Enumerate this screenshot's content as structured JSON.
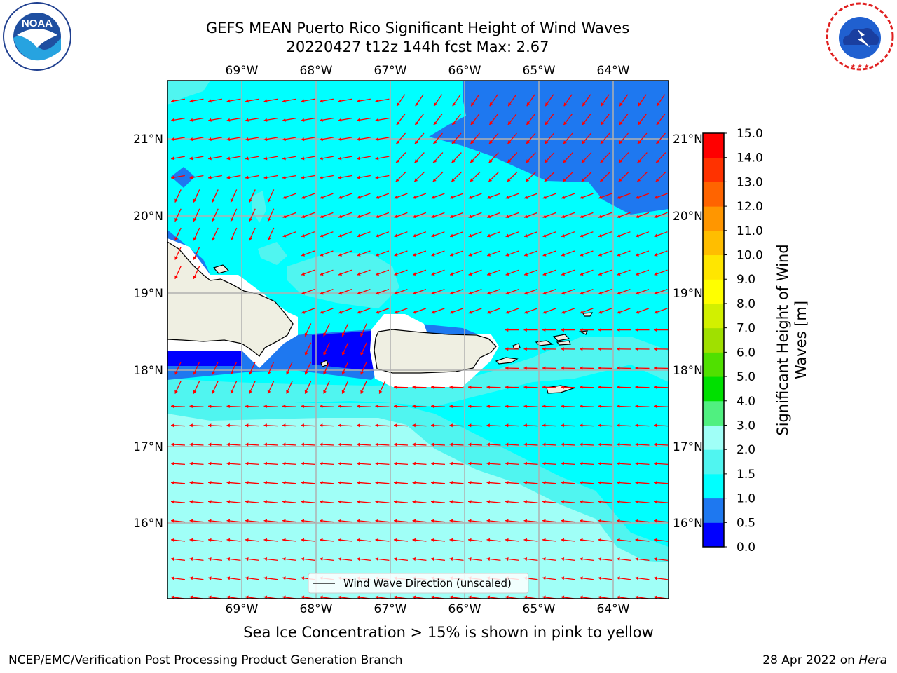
{
  "header": {
    "title_line1": "GEFS MEAN Puerto Rico Significant Height of Wind Waves",
    "title_line2": "20220427 t12z 144h fcst   Max: 2.67"
  },
  "logos": {
    "left": {
      "name": "noaa-logo",
      "text": "NOAA",
      "ring_text": "NATIONAL OCEANIC AND ATMOSPHERIC ADMINISTRATION · U.S. DEPARTMENT OF COMMERCE"
    },
    "right": {
      "name": "nws-logo",
      "ring_text": "NATIONAL WEATHER SERVICE"
    }
  },
  "map": {
    "lon_labels": [
      "69°W",
      "68°W",
      "67°W",
      "66°W",
      "65°W",
      "64°W"
    ],
    "lat_labels": [
      "21°N",
      "20°N",
      "19°N",
      "18°N",
      "17°N",
      "16°N"
    ],
    "legend_label": "Wind Wave Direction (unscaled)",
    "arrow_color": "#ff0000"
  },
  "colorbar": {
    "label_line1": "Significant Height of Wind",
    "label_line2": "Waves [m]",
    "ticks": [
      "0.0",
      "0.5",
      "1.0",
      "1.5",
      "2.0",
      "3.0",
      "4.0",
      "5.0",
      "6.0",
      "7.0",
      "8.0",
      "9.0",
      "10.0",
      "11.0",
      "12.0",
      "13.0",
      "14.0",
      "15.0"
    ],
    "colors": [
      "#0000ff",
      "#1e78f0",
      "#00ffff",
      "#50f5f0",
      "#a0fff7",
      "#50f080",
      "#00e000",
      "#50e000",
      "#a0e000",
      "#d2f000",
      "#ffff00",
      "#ffe600",
      "#ffbe00",
      "#ff9600",
      "#ff6400",
      "#ff3200",
      "#ff0000"
    ]
  },
  "note": "Sea Ice Concentration > 15% is shown in pink to yellow",
  "footer": {
    "left": "NCEP/EMC/Verification Post Processing Product Generation Branch",
    "right_prefix": "28 Apr 2022 on ",
    "right_host": "Hera"
  }
}
